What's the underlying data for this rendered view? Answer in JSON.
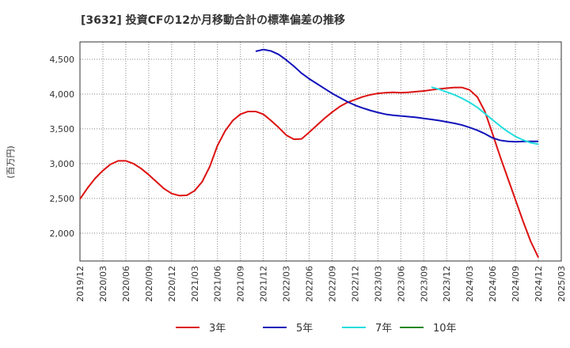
{
  "chart_data": {
    "type": "line",
    "title": "[3632]  投資CFの12か月移動合計の標準偏差の推移",
    "ylabel": "(百万円)",
    "xlabel": "",
    "ylim": [
      1600,
      4750
    ],
    "yticks": [
      2000,
      2500,
      3000,
      3500,
      4000,
      4500
    ],
    "ytick_labels": [
      "2,000",
      "2,500",
      "3,000",
      "3,500",
      "4,000",
      "4,500"
    ],
    "xlim": [
      "2019-12",
      "2025-03"
    ],
    "xticks": [
      "2019/12",
      "2020/03",
      "2020/06",
      "2020/09",
      "2020/12",
      "2021/03",
      "2021/06",
      "2021/09",
      "2021/12",
      "2022/03",
      "2022/06",
      "2022/09",
      "2022/12",
      "2023/03",
      "2023/06",
      "2023/09",
      "2023/12",
      "2024/03",
      "2024/06",
      "2024/09",
      "2024/12",
      "2025/03"
    ],
    "grid": true,
    "legend": "bottom",
    "series": [
      {
        "name": "3年",
        "color": "#dd1111",
        "points": [
          [
            "2019-12",
            2490
          ],
          [
            "2020-01",
            2650
          ],
          [
            "2020-02",
            2790
          ],
          [
            "2020-03",
            2900
          ],
          [
            "2020-04",
            2990
          ],
          [
            "2020-05",
            3040
          ],
          [
            "2020-06",
            3040
          ],
          [
            "2020-07",
            3000
          ],
          [
            "2020-08",
            2930
          ],
          [
            "2020-09",
            2840
          ],
          [
            "2020-10",
            2740
          ],
          [
            "2020-11",
            2640
          ],
          [
            "2020-12",
            2570
          ],
          [
            "2021-01",
            2540
          ],
          [
            "2021-02",
            2545
          ],
          [
            "2021-03",
            2610
          ],
          [
            "2021-04",
            2740
          ],
          [
            "2021-05",
            2960
          ],
          [
            "2021-06",
            3260
          ],
          [
            "2021-07",
            3470
          ],
          [
            "2021-08",
            3620
          ],
          [
            "2021-09",
            3710
          ],
          [
            "2021-10",
            3750
          ],
          [
            "2021-11",
            3750
          ],
          [
            "2021-12",
            3710
          ],
          [
            "2022-01",
            3620
          ],
          [
            "2022-02",
            3520
          ],
          [
            "2022-03",
            3410
          ],
          [
            "2022-04",
            3350
          ],
          [
            "2022-05",
            3355
          ],
          [
            "2022-06",
            3450
          ],
          [
            "2022-07",
            3550
          ],
          [
            "2022-08",
            3650
          ],
          [
            "2022-09",
            3740
          ],
          [
            "2022-10",
            3820
          ],
          [
            "2022-11",
            3880
          ],
          [
            "2022-12",
            3920
          ],
          [
            "2023-01",
            3960
          ],
          [
            "2023-02",
            3990
          ],
          [
            "2023-03",
            4010
          ],
          [
            "2023-04",
            4020
          ],
          [
            "2023-05",
            4025
          ],
          [
            "2023-06",
            4020
          ],
          [
            "2023-07",
            4025
          ],
          [
            "2023-08",
            4035
          ],
          [
            "2023-09",
            4045
          ],
          [
            "2023-10",
            4060
          ],
          [
            "2023-11",
            4075
          ],
          [
            "2023-12",
            4085
          ],
          [
            "2024-01",
            4095
          ],
          [
            "2024-02",
            4095
          ],
          [
            "2024-03",
            4060
          ],
          [
            "2024-04",
            3960
          ],
          [
            "2024-05",
            3750
          ],
          [
            "2024-06",
            3430
          ],
          [
            "2024-07",
            3100
          ],
          [
            "2024-08",
            2790
          ],
          [
            "2024-09",
            2480
          ],
          [
            "2024-10",
            2170
          ],
          [
            "2024-11",
            1880
          ],
          [
            "2024-12",
            1650
          ]
        ]
      },
      {
        "name": "5年",
        "color": "#1111bb",
        "points": [
          [
            "2021-11",
            4615
          ],
          [
            "2021-12",
            4640
          ],
          [
            "2022-01",
            4620
          ],
          [
            "2022-02",
            4570
          ],
          [
            "2022-03",
            4490
          ],
          [
            "2022-04",
            4400
          ],
          [
            "2022-05",
            4300
          ],
          [
            "2022-06",
            4220
          ],
          [
            "2022-07",
            4150
          ],
          [
            "2022-08",
            4080
          ],
          [
            "2022-09",
            4010
          ],
          [
            "2022-10",
            3950
          ],
          [
            "2022-11",
            3890
          ],
          [
            "2022-12",
            3840
          ],
          [
            "2023-01",
            3800
          ],
          [
            "2023-02",
            3765
          ],
          [
            "2023-03",
            3735
          ],
          [
            "2023-04",
            3710
          ],
          [
            "2023-05",
            3695
          ],
          [
            "2023-06",
            3685
          ],
          [
            "2023-07",
            3675
          ],
          [
            "2023-08",
            3665
          ],
          [
            "2023-09",
            3650
          ],
          [
            "2023-10",
            3635
          ],
          [
            "2023-11",
            3620
          ],
          [
            "2023-12",
            3600
          ],
          [
            "2024-01",
            3580
          ],
          [
            "2024-02",
            3555
          ],
          [
            "2024-03",
            3520
          ],
          [
            "2024-04",
            3480
          ],
          [
            "2024-05",
            3430
          ],
          [
            "2024-06",
            3370
          ],
          [
            "2024-07",
            3335
          ],
          [
            "2024-08",
            3320
          ],
          [
            "2024-09",
            3315
          ],
          [
            "2024-10",
            3318
          ],
          [
            "2024-11",
            3320
          ],
          [
            "2024-12",
            3320
          ]
        ]
      },
      {
        "name": "7年",
        "color": "#22dddd",
        "points": [
          [
            "2023-10",
            4100
          ],
          [
            "2023-11",
            4070
          ],
          [
            "2023-12",
            4030
          ],
          [
            "2024-01",
            3990
          ],
          [
            "2024-02",
            3940
          ],
          [
            "2024-03",
            3880
          ],
          [
            "2024-04",
            3810
          ],
          [
            "2024-05",
            3720
          ],
          [
            "2024-06",
            3630
          ],
          [
            "2024-07",
            3540
          ],
          [
            "2024-08",
            3460
          ],
          [
            "2024-09",
            3390
          ],
          [
            "2024-10",
            3340
          ],
          [
            "2024-11",
            3300
          ],
          [
            "2024-12",
            3280
          ]
        ]
      },
      {
        "name": "10年",
        "color": "#228822",
        "points": []
      }
    ]
  }
}
